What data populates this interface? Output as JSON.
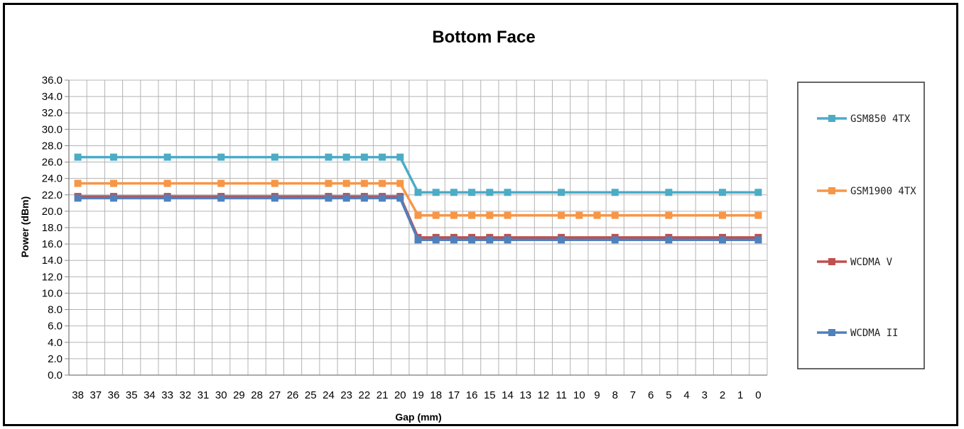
{
  "chart_data": {
    "type": "line",
    "title": "Bottom Face",
    "xlabel": "Gap (mm)",
    "ylabel": "Power (dBm)",
    "x_categories": [
      "38",
      "37",
      "36",
      "35",
      "34",
      "33",
      "32",
      "31",
      "30",
      "29",
      "28",
      "27",
      "26",
      "25",
      "24",
      "23",
      "22",
      "21",
      "20",
      "19",
      "18",
      "17",
      "16",
      "15",
      "14",
      "13",
      "12",
      "11",
      "10",
      "9",
      "8",
      "7",
      "6",
      "5",
      "4",
      "3",
      "2",
      "1",
      "0"
    ],
    "ylim": [
      0,
      36
    ],
    "y_ticks": [
      "0.0",
      "2.0",
      "4.0",
      "6.0",
      "8.0",
      "10.0",
      "12.0",
      "14.0",
      "16.0",
      "18.0",
      "20.0",
      "22.0",
      "24.0",
      "26.0",
      "28.0",
      "30.0",
      "32.0",
      "34.0",
      "36.0"
    ],
    "grid": true,
    "legend_position": "right",
    "series": [
      {
        "name": "GSM850 4TX",
        "color": "#4BACC6",
        "x": [
          "38",
          "36",
          "33",
          "30",
          "27",
          "24",
          "23",
          "22",
          "21",
          "20",
          "19",
          "18",
          "17",
          "16",
          "15",
          "14",
          "11",
          "8",
          "5",
          "2",
          "0"
        ],
        "values": [
          26.6,
          26.6,
          26.6,
          26.6,
          26.6,
          26.6,
          26.6,
          26.6,
          26.6,
          26.6,
          22.3,
          22.3,
          22.3,
          22.3,
          22.3,
          22.3,
          22.3,
          22.3,
          22.3,
          22.3,
          22.3
        ]
      },
      {
        "name": "GSM1900 4TX",
        "color": "#F79646",
        "x": [
          "38",
          "36",
          "33",
          "30",
          "27",
          "24",
          "23",
          "22",
          "21",
          "20",
          "19",
          "18",
          "17",
          "16",
          "15",
          "14",
          "11",
          "10",
          "9",
          "8",
          "5",
          "2",
          "0"
        ],
        "values": [
          23.4,
          23.4,
          23.4,
          23.4,
          23.4,
          23.4,
          23.4,
          23.4,
          23.4,
          23.4,
          19.5,
          19.5,
          19.5,
          19.5,
          19.5,
          19.5,
          19.5,
          19.5,
          19.5,
          19.5,
          19.5,
          19.5,
          19.5
        ]
      },
      {
        "name": "WCDMA V",
        "color": "#C0504D",
        "x": [
          "38",
          "36",
          "33",
          "30",
          "27",
          "24",
          "23",
          "22",
          "21",
          "20",
          "19",
          "18",
          "17",
          "16",
          "15",
          "14",
          "11",
          "8",
          "5",
          "2",
          "0"
        ],
        "values": [
          21.8,
          21.8,
          21.8,
          21.8,
          21.8,
          21.8,
          21.8,
          21.8,
          21.8,
          21.8,
          16.8,
          16.8,
          16.8,
          16.8,
          16.8,
          16.8,
          16.8,
          16.8,
          16.8,
          16.8,
          16.8
        ]
      },
      {
        "name": "WCDMA II",
        "color": "#4F81BD",
        "x": [
          "38",
          "36",
          "33",
          "30",
          "27",
          "24",
          "23",
          "22",
          "21",
          "20",
          "19",
          "18",
          "17",
          "16",
          "15",
          "14",
          "11",
          "8",
          "5",
          "2",
          "0"
        ],
        "values": [
          21.6,
          21.6,
          21.6,
          21.6,
          21.6,
          21.6,
          21.6,
          21.6,
          21.6,
          21.6,
          16.5,
          16.5,
          16.5,
          16.5,
          16.5,
          16.5,
          16.5,
          16.5,
          16.5,
          16.5,
          16.5
        ]
      }
    ]
  }
}
